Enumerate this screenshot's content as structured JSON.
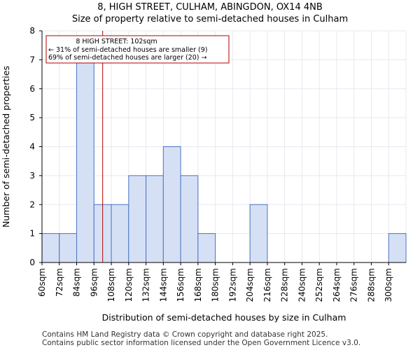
{
  "title_line1": "8, HIGH STREET, CULHAM, ABINGDON, OX14 4NB",
  "title_line2": "Size of property relative to semi-detached houses in Culham",
  "footer_line1": "Contains HM Land Registry data © Crown copyright and database right 2025.",
  "footer_line2": "Contains public sector information licensed under the Open Government Licence v3.0.",
  "colors": {
    "bar_fill": "#d6e0f5",
    "bar_edge": "#4a74c0",
    "marker": "#b00000",
    "annotation_border": "#b00000"
  },
  "chart_data": {
    "type": "bar",
    "xlabel": "Distribution of semi-detached houses by size in Culham",
    "ylabel": "Number of semi-detached properties",
    "categories": [
      "60sqm",
      "72sqm",
      "84sqm",
      "96sqm",
      "108sqm",
      "120sqm",
      "132sqm",
      "144sqm",
      "156sqm",
      "168sqm",
      "180sqm",
      "192sqm",
      "204sqm",
      "216sqm",
      "228sqm",
      "240sqm",
      "252sqm",
      "264sqm",
      "276sqm",
      "288sqm",
      "300sqm"
    ],
    "bin_edges": [
      60,
      72,
      84,
      96,
      108,
      120,
      132,
      144,
      156,
      168,
      180,
      192,
      204,
      216,
      228,
      240,
      252,
      264,
      276,
      288,
      300,
      312
    ],
    "values": [
      1,
      1,
      7,
      2,
      2,
      3,
      3,
      4,
      3,
      1,
      0,
      0,
      2,
      0,
      0,
      0,
      0,
      0,
      0,
      0,
      1
    ],
    "ylim": [
      0,
      8
    ],
    "yticks": [
      0,
      1,
      2,
      3,
      4,
      5,
      6,
      7,
      8
    ],
    "marker_value": 102,
    "annotation": {
      "line1": "8 HIGH STREET: 102sqm",
      "line2": "← 31% of semi-detached houses are smaller (9)",
      "line3": "69% of semi-detached houses are larger (20) →"
    },
    "grid": true,
    "legend": "none"
  }
}
